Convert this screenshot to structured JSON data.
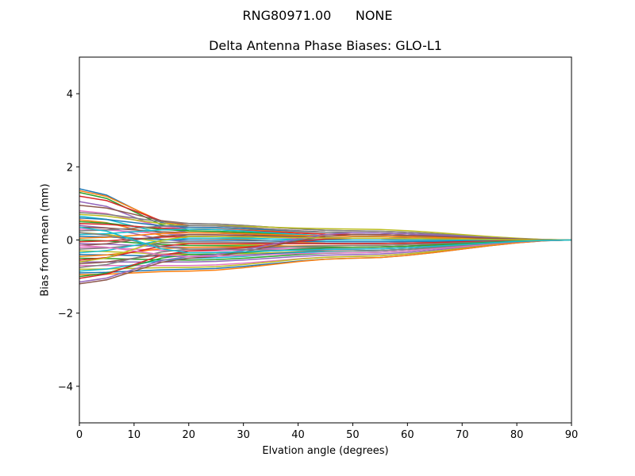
{
  "figure": {
    "suptitle": "RNG80971.00      NONE",
    "title": "Delta Antenna Phase Biases: GLO-L1",
    "xlabel": "Elvation angle (degrees)",
    "ylabel": "Bias from mean (mm)"
  },
  "chart_data": {
    "type": "line",
    "title": "Delta Antenna Phase Biases: GLO-L1",
    "suptitle": "RNG80971.00      NONE",
    "xlabel": "Elvation angle (degrees)",
    "ylabel": "Bias from mean (mm)",
    "xlim": [
      0,
      90
    ],
    "ylim": [
      -5,
      5
    ],
    "xticks": [
      0,
      10,
      20,
      30,
      40,
      50,
      60,
      70,
      80,
      90
    ],
    "yticks": [
      -4,
      -2,
      0,
      2,
      4
    ],
    "ytick_labels": [
      "−4",
      "−2",
      "0",
      "2",
      "4"
    ],
    "grid": false,
    "legend": "none",
    "x": [
      0,
      5,
      10,
      15,
      20,
      25,
      30,
      35,
      40,
      45,
      50,
      55,
      60,
      65,
      70,
      75,
      80,
      85,
      90
    ],
    "colors": [
      "#1f77b4",
      "#ff7f0e",
      "#2ca02c",
      "#d62728",
      "#9467bd",
      "#8c564b",
      "#e377c2",
      "#7f7f7f",
      "#bcbd22",
      "#17becf"
    ],
    "series_note": "Approx. 50 overlapping series converging to 0 at 90 degrees; start values at 0 deg listed, mid values at 20 and 50 deg",
    "series": [
      {
        "start": 1.4,
        "at20": 0.3,
        "at50": 0.1
      },
      {
        "start": 1.35,
        "at20": 0.35,
        "at50": 0.15
      },
      {
        "start": 1.3,
        "at20": 0.25,
        "at50": 0.05
      },
      {
        "start": 1.2,
        "at20": 0.4,
        "at50": 0.2
      },
      {
        "start": 1.05,
        "at20": 0.2,
        "at50": 0.1
      },
      {
        "start": 0.95,
        "at20": 0.45,
        "at50": 0.25
      },
      {
        "start": 0.8,
        "at20": 0.3,
        "at50": 0.15
      },
      {
        "start": 0.75,
        "at20": 0.45,
        "at50": 0.25
      },
      {
        "start": 0.7,
        "at20": 0.4,
        "at50": 0.3
      },
      {
        "start": 0.65,
        "at20": 0.1,
        "at50": -0.05
      },
      {
        "start": 0.6,
        "at20": 0.35,
        "at50": 0.2
      },
      {
        "start": 0.55,
        "at20": 0.05,
        "at50": -0.1
      },
      {
        "start": 0.5,
        "at20": 0.25,
        "at50": 0.1
      },
      {
        "start": 0.45,
        "at20": 0.3,
        "at50": 0.15
      },
      {
        "start": 0.4,
        "at20": -0.05,
        "at50": -0.1
      },
      {
        "start": 0.35,
        "at20": 0.2,
        "at50": 0.05
      },
      {
        "start": 0.3,
        "at20": 0.15,
        "at50": 0.0
      },
      {
        "start": 0.25,
        "at20": 0.4,
        "at50": 0.2
      },
      {
        "start": 0.2,
        "at20": -0.1,
        "at50": -0.2
      },
      {
        "start": 0.15,
        "at20": 0.3,
        "at50": 0.1
      },
      {
        "start": 0.1,
        "at20": 0.0,
        "at50": -0.05
      },
      {
        "start": 0.05,
        "at20": 0.2,
        "at50": 0.1
      },
      {
        "start": 0.0,
        "at20": -0.15,
        "at50": -0.2
      },
      {
        "start": -0.05,
        "at20": 0.1,
        "at50": 0.05
      },
      {
        "start": -0.1,
        "at20": -0.2,
        "at50": -0.25
      },
      {
        "start": -0.15,
        "at20": 0.15,
        "at50": 0.05
      },
      {
        "start": -0.2,
        "at20": -0.3,
        "at50": -0.2
      },
      {
        "start": -0.25,
        "at20": -0.05,
        "at50": -0.1
      },
      {
        "start": -0.3,
        "at20": -0.4,
        "at50": -0.3
      },
      {
        "start": -0.35,
        "at20": 0.05,
        "at50": 0.0
      },
      {
        "start": -0.4,
        "at20": -0.45,
        "at50": -0.3
      },
      {
        "start": -0.45,
        "at20": -0.2,
        "at50": -0.15
      },
      {
        "start": -0.5,
        "at20": -0.55,
        "at50": -0.35
      },
      {
        "start": -0.55,
        "at20": -0.1,
        "at50": -0.1
      },
      {
        "start": -0.6,
        "at20": -0.6,
        "at50": -0.4
      },
      {
        "start": -0.65,
        "at20": -0.35,
        "at50": -0.25
      },
      {
        "start": -0.7,
        "at20": -0.7,
        "at50": -0.45
      },
      {
        "start": -0.75,
        "at20": -0.25,
        "at50": -0.15
      },
      {
        "start": -0.8,
        "at20": -0.75,
        "at50": -0.45
      },
      {
        "start": -0.85,
        "at20": -0.5,
        "at50": -0.3
      },
      {
        "start": -0.9,
        "at20": -0.8,
        "at50": -0.5
      },
      {
        "start": -0.95,
        "at20": -0.85,
        "at50": -0.5
      },
      {
        "start": -1.0,
        "at20": -0.4,
        "at50": -0.2
      },
      {
        "start": -1.05,
        "at20": -0.3,
        "at50": 0.05
      },
      {
        "start": -1.15,
        "at20": -0.45,
        "at50": 0.2
      },
      {
        "start": -1.2,
        "at20": -0.5,
        "at50": 0.15
      },
      {
        "start": -0.15,
        "at20": -0.45,
        "at50": -0.35
      },
      {
        "start": 0.2,
        "at20": -0.25,
        "at50": -0.3
      },
      {
        "start": -0.6,
        "at20": 0.1,
        "at50": 0.05
      },
      {
        "start": 0.35,
        "at20": -0.35,
        "at50": -0.25
      }
    ]
  }
}
